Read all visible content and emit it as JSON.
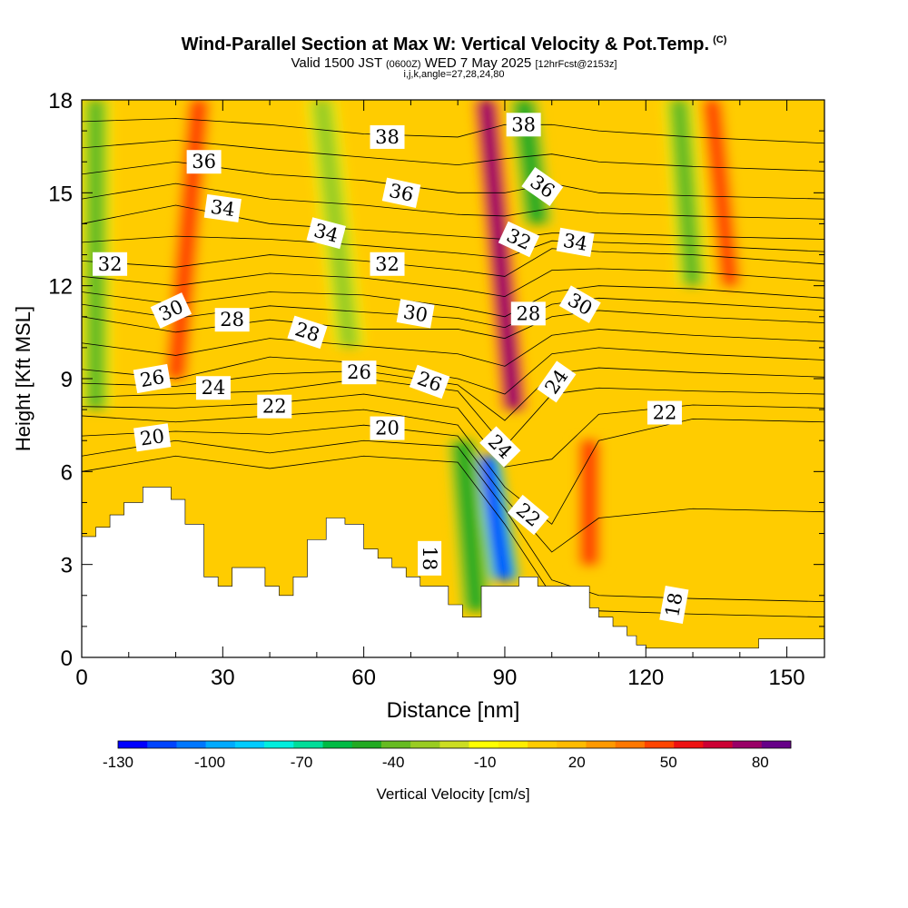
{
  "title": {
    "main": "Wind-Parallel Section at Max W: Vertical Velocity & Pot.Temp.",
    "copyright": "(C)",
    "valid_prefix": "Valid 1500 JST",
    "valid_utc": "(0600Z)",
    "valid_date": "WED 7 May 2025",
    "forecast": "[12hrFcst@2153z]",
    "indices": "i,j,k,angle=27,28,24,80"
  },
  "chart_data": {
    "type": "heatmap",
    "xlabel": "Distance [nm]",
    "ylabel": "Height [Kft MSL]",
    "xlim": [
      0,
      158
    ],
    "ylim": [
      0,
      18
    ],
    "x_ticks": [
      "0",
      "30",
      "60",
      "90",
      "120",
      "150"
    ],
    "y_ticks": [
      "0",
      "3",
      "6",
      "9",
      "12",
      "15",
      "18"
    ],
    "x_tick_values": [
      0,
      30,
      60,
      90,
      120,
      150
    ],
    "y_tick_values": [
      0,
      3,
      6,
      9,
      12,
      15,
      18
    ],
    "terrain_profile": [
      [
        0,
        3.9
      ],
      [
        3,
        4.2
      ],
      [
        6,
        4.6
      ],
      [
        9,
        5.0
      ],
      [
        13,
        5.5
      ],
      [
        19,
        5.1
      ],
      [
        22,
        4.3
      ],
      [
        25,
        4.3
      ],
      [
        26,
        2.6
      ],
      [
        29,
        2.3
      ],
      [
        32,
        2.9
      ],
      [
        39,
        2.3
      ],
      [
        42,
        2.0
      ],
      [
        45,
        2.6
      ],
      [
        48,
        3.8
      ],
      [
        52,
        4.5
      ],
      [
        56,
        4.3
      ],
      [
        60,
        3.5
      ],
      [
        63,
        3.2
      ],
      [
        66,
        2.9
      ],
      [
        69,
        2.6
      ],
      [
        72,
        2.3
      ],
      [
        76,
        2.3
      ],
      [
        78,
        1.7
      ],
      [
        81,
        1.3
      ],
      [
        85,
        2.3
      ],
      [
        88,
        2.3
      ],
      [
        93,
        2.6
      ],
      [
        97,
        2.3
      ],
      [
        105,
        2.3
      ],
      [
        108,
        1.6
      ],
      [
        110,
        1.3
      ],
      [
        113,
        1.0
      ],
      [
        116,
        0.7
      ],
      [
        118,
        0.4
      ],
      [
        120,
        0.3
      ],
      [
        140,
        0.3
      ],
      [
        144,
        0.6
      ],
      [
        158,
        0.6
      ]
    ],
    "vertical_velocity_features": [
      {
        "x": 20,
        "y0": 9,
        "y1": 18,
        "lean": 5,
        "value": 55
      },
      {
        "x": 92,
        "y0": 8,
        "y1": 18,
        "lean": -6,
        "value": 85
      },
      {
        "x": 108,
        "y0": 3,
        "y1": 7,
        "lean": 0,
        "value": 55
      },
      {
        "x": 138,
        "y0": 12,
        "y1": 18,
        "lean": -4,
        "value": 50
      },
      {
        "x": 90,
        "y0": 2.5,
        "y1": 6.5,
        "lean": -4,
        "value": -120
      },
      {
        "x": 97,
        "y0": 14,
        "y1": 18,
        "lean": -3,
        "value": -50
      },
      {
        "x": 3,
        "y0": 8,
        "y1": 18,
        "lean": 0,
        "value": -40
      },
      {
        "x": 130,
        "y0": 12,
        "y1": 18,
        "lean": -3,
        "value": -35
      },
      {
        "x": 57,
        "y0": 10,
        "y1": 18,
        "lean": -6,
        "value": -25
      },
      {
        "x": 84,
        "y0": 1.5,
        "y1": 7,
        "lean": -3,
        "value": -45
      }
    ],
    "theta_contour_labels": [
      {
        "text": "36",
        "x": 26,
        "y": 16.0,
        "rot": 0
      },
      {
        "text": "38",
        "x": 65,
        "y": 16.8,
        "rot": 0
      },
      {
        "text": "38",
        "x": 94,
        "y": 17.2,
        "rot": 0
      },
      {
        "text": "34",
        "x": 30,
        "y": 14.5,
        "rot": 8
      },
      {
        "text": "36",
        "x": 68,
        "y": 15.0,
        "rot": 12
      },
      {
        "text": "36",
        "x": 98,
        "y": 15.2,
        "rot": 35
      },
      {
        "text": "32",
        "x": 6,
        "y": 12.7,
        "rot": 0
      },
      {
        "text": "34",
        "x": 52,
        "y": 13.7,
        "rot": 15
      },
      {
        "text": "32",
        "x": 93,
        "y": 13.5,
        "rot": 25
      },
      {
        "text": "34",
        "x": 105,
        "y": 13.4,
        "rot": 10
      },
      {
        "text": "32",
        "x": 65,
        "y": 12.7,
        "rot": 0
      },
      {
        "text": "30",
        "x": 19,
        "y": 11.2,
        "rot": -25
      },
      {
        "text": "28",
        "x": 32,
        "y": 10.9,
        "rot": 0
      },
      {
        "text": "28",
        "x": 48,
        "y": 10.5,
        "rot": 18
      },
      {
        "text": "30",
        "x": 71,
        "y": 11.1,
        "rot": 10
      },
      {
        "text": "28",
        "x": 95,
        "y": 11.1,
        "rot": 0
      },
      {
        "text": "30",
        "x": 106,
        "y": 11.4,
        "rot": 30
      },
      {
        "text": "26",
        "x": 15,
        "y": 9.0,
        "rot": -10
      },
      {
        "text": "24",
        "x": 28,
        "y": 8.7,
        "rot": 0
      },
      {
        "text": "26",
        "x": 59,
        "y": 9.2,
        "rot": 0
      },
      {
        "text": "26",
        "x": 74,
        "y": 8.9,
        "rot": 20
      },
      {
        "text": "24",
        "x": 101,
        "y": 8.9,
        "rot": -55
      },
      {
        "text": "22",
        "x": 41,
        "y": 8.1,
        "rot": 0
      },
      {
        "text": "22",
        "x": 124,
        "y": 7.9,
        "rot": 0
      },
      {
        "text": "20",
        "x": 15,
        "y": 7.1,
        "rot": -8
      },
      {
        "text": "20",
        "x": 65,
        "y": 7.4,
        "rot": 0
      },
      {
        "text": "24",
        "x": 89,
        "y": 6.8,
        "rot": 45
      },
      {
        "text": "22",
        "x": 95,
        "y": 4.6,
        "rot": 40
      },
      {
        "text": "18",
        "x": 74,
        "y": 3.2,
        "rot": 90
      },
      {
        "text": "18",
        "x": 126,
        "y": 1.7,
        "rot": -80
      }
    ],
    "theta_contours": {
      "levels": [
        19,
        20,
        21,
        22,
        23,
        24,
        25,
        26,
        27,
        28,
        29,
        30,
        31,
        32,
        33,
        34,
        35,
        36,
        37,
        38
      ],
      "heights_at_x": {
        "x": [
          0,
          20,
          40,
          60,
          80,
          90,
          100,
          110,
          130,
          158
        ],
        "level_20": [
          6.5,
          7.0,
          6.6,
          7.0,
          6.8,
          4.8,
          2.5,
          2.0,
          1.9,
          1.8
        ],
        "level_22": [
          7.8,
          7.6,
          7.8,
          8.0,
          7.5,
          5.5,
          4.3,
          7.0,
          7.7,
          7.6
        ],
        "level_24": [
          8.4,
          8.5,
          8.6,
          9.0,
          8.6,
          6.8,
          8.5,
          8.7,
          8.6,
          8.5
        ],
        "level_26": [
          9.3,
          9.0,
          9.7,
          9.5,
          9.0,
          8.5,
          9.8,
          10.0,
          9.8,
          9.6
        ],
        "level_28": [
          11.0,
          10.5,
          10.9,
          10.6,
          10.6,
          10.3,
          11.0,
          11.2,
          11.0,
          10.8
        ],
        "level_30": [
          11.8,
          11.4,
          11.8,
          11.7,
          11.3,
          11.0,
          11.8,
          12.0,
          11.9,
          11.6
        ],
        "level_32": [
          12.8,
          12.6,
          13.0,
          12.8,
          12.5,
          12.3,
          13.2,
          13.1,
          13.0,
          12.7
        ],
        "level_34": [
          14.0,
          14.6,
          14.0,
          13.8,
          13.6,
          13.5,
          13.7,
          13.7,
          13.6,
          13.5
        ],
        "level_36": [
          15.6,
          16.0,
          15.6,
          15.4,
          15.0,
          15.0,
          15.3,
          15.0,
          14.9,
          14.8
        ],
        "level_38": [
          17.3,
          17.4,
          17.2,
          16.9,
          16.8,
          17.2,
          17.2,
          17.0,
          16.8,
          16.6
        ]
      }
    },
    "colorbar": {
      "label": "Vertical Velocity [cm/s]",
      "tick_labels": [
        "-130",
        "-100",
        "-70",
        "-40",
        "-10",
        "20",
        "50",
        "80"
      ],
      "tick_values": [
        -130,
        -100,
        -70,
        -40,
        -10,
        20,
        50,
        80
      ],
      "levels": [
        -130,
        -120,
        -110,
        -100,
        -90,
        -80,
        -70,
        -60,
        -50,
        -40,
        -30,
        -20,
        -10,
        0,
        10,
        20,
        30,
        40,
        50,
        60,
        70,
        80,
        90
      ],
      "colors": [
        "#0000ff",
        "#0044ff",
        "#0077ff",
        "#00aaff",
        "#00ccff",
        "#00eedd",
        "#00dd99",
        "#00bb44",
        "#22aa22",
        "#66bb22",
        "#99cc22",
        "#ccdd22",
        "#ffff00",
        "#ffee00",
        "#ffcc00",
        "#ffbb00",
        "#ff9900",
        "#ff7700",
        "#ff4400",
        "#ee1111",
        "#cc0033",
        "#990066",
        "#660088"
      ]
    }
  }
}
